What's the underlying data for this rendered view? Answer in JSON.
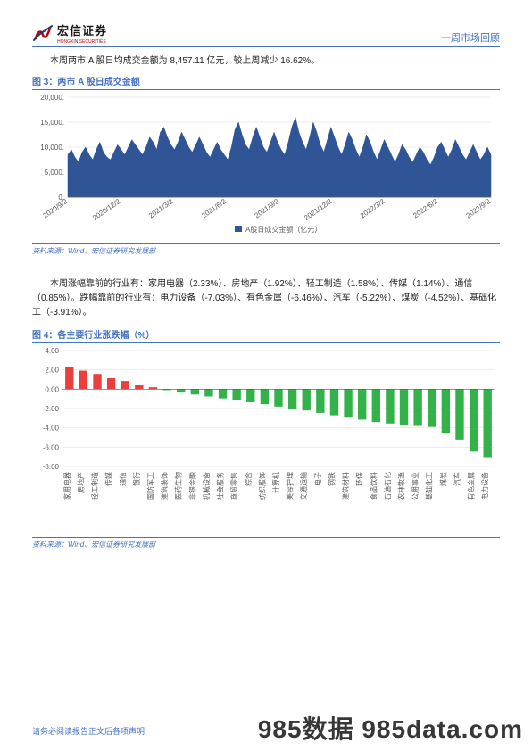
{
  "header": {
    "brand_cn": "宏信证券",
    "brand_en": "HONGXIN SECURITIES",
    "right": "一周市场回顾"
  },
  "intro1": "本周两市 A 股日均成交金额为 8,457.11 亿元，较上周减少 16.62%。",
  "fig3": {
    "title": "图 3：两市 A 股日成交金额",
    "type": "area",
    "legend": "A股日成交金额（亿元）",
    "bg": "#ffffff",
    "grid_color": "#d9d9d9",
    "series_color": "#2f5597",
    "text_color": "#595959",
    "label_fontsize": 8,
    "ylim": [
      0,
      20000
    ],
    "yticks": [
      0,
      5000,
      10000,
      15000,
      20000
    ],
    "xticks": [
      "2020/9/2",
      "2020/12/2",
      "2021/3/2",
      "2021/6/2",
      "2021/9/2",
      "2021/12/2",
      "2022/3/2",
      "2022/6/2",
      "2022/9/2"
    ],
    "values": [
      8500,
      9500,
      8000,
      7000,
      9000,
      10000,
      8500,
      7500,
      9500,
      11000,
      9000,
      8000,
      7500,
      9000,
      10500,
      9500,
      8500,
      10000,
      11500,
      10500,
      9500,
      8500,
      10000,
      12000,
      11000,
      9500,
      13000,
      14000,
      12000,
      10500,
      9500,
      11000,
      13000,
      11500,
      10000,
      9000,
      10500,
      12000,
      10500,
      9000,
      8000,
      9500,
      11000,
      9500,
      8500,
      7500,
      10000,
      13500,
      15000,
      12500,
      10500,
      9500,
      12000,
      14000,
      12000,
      10000,
      9000,
      11000,
      13000,
      11000,
      9500,
      8500,
      11000,
      14000,
      16000,
      13000,
      11000,
      9500,
      12000,
      15000,
      13000,
      10500,
      9000,
      11500,
      14000,
      12000,
      10000,
      8500,
      10500,
      13000,
      11500,
      9500,
      8000,
      10000,
      12500,
      11000,
      9000,
      7500,
      9500,
      11500,
      10000,
      8500,
      7000,
      8500,
      10500,
      9500,
      8000,
      7000,
      8500,
      10000,
      9000,
      7500,
      6500,
      8000,
      10000,
      11000,
      9500,
      8000,
      9500,
      11500,
      10000,
      8500,
      7500,
      9000,
      10500,
      9000,
      7500,
      8500,
      10000,
      8500
    ]
  },
  "source": "资料来源：Wind、宏信证券研究发展部",
  "intro2": "本周涨幅靠前的行业有：家用电器（2.33%）、房地产（1.92%）、轻工制造（1.58%）、传媒（1.14%）、通信（0.85%）。跌幅靠前的行业有：电力设备（-7.03%）、有色金属（-6.46%）、汽车（-5.22%）、煤炭（-4.52%）、基础化工（-3.91%）。",
  "fig4": {
    "title": "图 4：各主要行业涨跌幅（%）",
    "type": "bar",
    "bg": "#ffffff",
    "grid_color": "#d9d9d9",
    "text_color": "#595959",
    "up_color": "#e83f3f",
    "down_color": "#34b24a",
    "label_fontsize": 7,
    "ylim": [
      -8,
      4
    ],
    "yticks": [
      -8,
      -6,
      -4,
      -2,
      0,
      2,
      4
    ],
    "bar_width": 0.6,
    "categories": [
      "家用电器",
      "房地产",
      "轻工制造",
      "传媒",
      "通信",
      "银行",
      "国防军工",
      "建筑装饰",
      "医药生物",
      "非银金融",
      "机械设备",
      "社会服务",
      "商贸零售",
      "综合",
      "纺织服饰",
      "计算机",
      "美容护理",
      "交通运输",
      "电子",
      "钢铁",
      "建筑材料",
      "环保",
      "食品饮料",
      "石油石化",
      "农林牧渔",
      "公用事业",
      "基础化工",
      "煤炭",
      "汽车",
      "有色金属",
      "电力设备"
    ],
    "values": [
      2.33,
      1.92,
      1.58,
      1.14,
      0.85,
      0.4,
      0.2,
      -0.1,
      -0.35,
      -0.55,
      -0.75,
      -0.95,
      -1.15,
      -1.35,
      -1.55,
      -1.8,
      -2.0,
      -2.2,
      -2.45,
      -2.7,
      -2.95,
      -3.15,
      -3.4,
      -3.55,
      -3.7,
      -3.8,
      -3.91,
      -4.52,
      -5.22,
      -6.46,
      -7.03
    ]
  },
  "footer": "请务必阅读报告正文后各项声明",
  "watermark": "985数据 985data.com"
}
